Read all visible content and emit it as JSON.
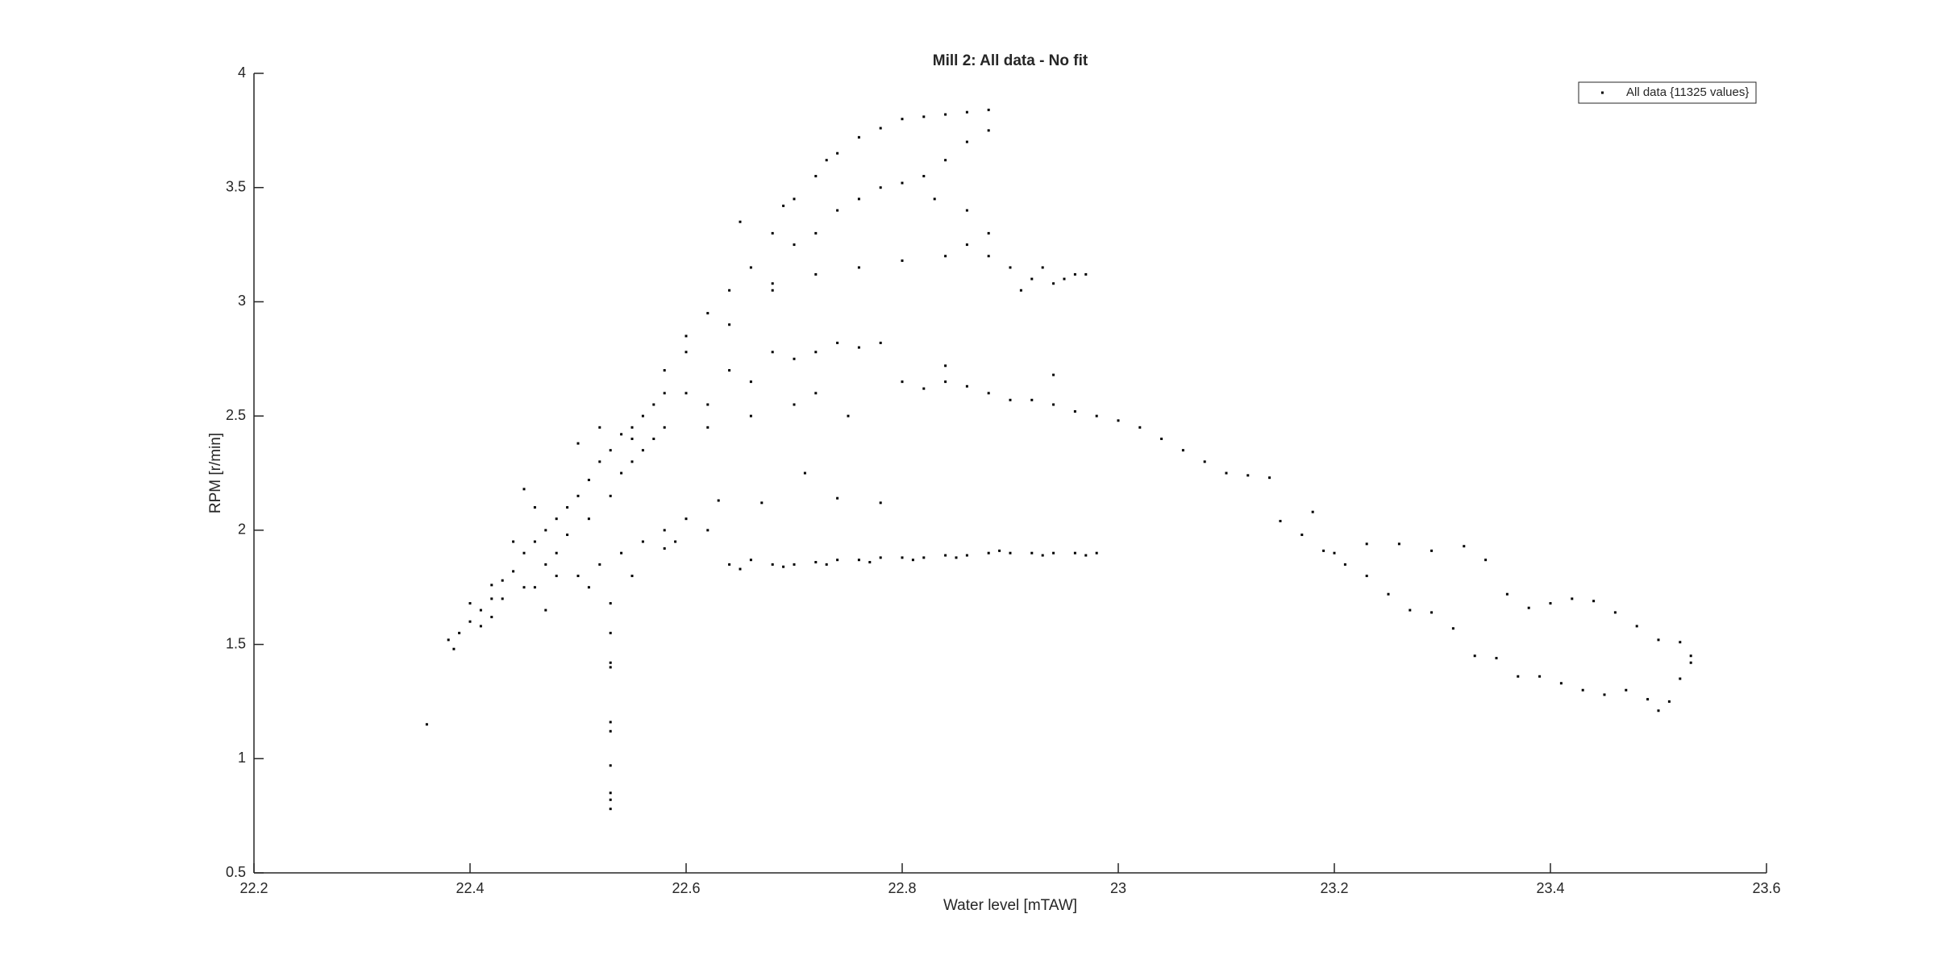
{
  "chart_data": {
    "type": "scatter",
    "title": "Mill 2: All data - No fit",
    "x_label": "Water level [mTAW]",
    "y_label": "RPM [r/min]",
    "xlim": [
      22.2,
      23.6
    ],
    "xticks": [
      22.2,
      22.4,
      22.6,
      22.8,
      23,
      23.2,
      23.4,
      23.6
    ],
    "ylim": [
      0.5,
      4
    ],
    "yticks": [
      0.5,
      1,
      1.5,
      2,
      2.5,
      3,
      3.5,
      4
    ],
    "legend": "top-right",
    "series": [
      {
        "name": "All data {11325 values}",
        "color": "#000000",
        "x": [
          22.38,
          22.385,
          22.39,
          22.4,
          22.41,
          22.42,
          22.43,
          22.44,
          22.45,
          22.46,
          22.47,
          22.48,
          22.49,
          22.5,
          22.51,
          22.52,
          22.53,
          22.54,
          22.55,
          22.56,
          22.57,
          22.58,
          22.4,
          22.42,
          22.44,
          22.45,
          22.45,
          22.46,
          22.47,
          22.48,
          22.49,
          22.5,
          22.51,
          22.52,
          22.53,
          22.54,
          22.55,
          22.56,
          22.57,
          22.42,
          22.43,
          22.41,
          22.46,
          22.48,
          22.5,
          22.52,
          22.54,
          22.56,
          22.58,
          22.6,
          22.47,
          22.51,
          22.55,
          22.59,
          22.62,
          22.64,
          22.65,
          22.68,
          22.7,
          22.72,
          22.74,
          22.76,
          22.78,
          22.8,
          22.82,
          22.84,
          22.86,
          22.88,
          22.9,
          22.92,
          22.94,
          22.96,
          22.98,
          22.66,
          22.69,
          22.73,
          22.77,
          22.81,
          22.85,
          22.89,
          22.93,
          22.97,
          22.63,
          22.67,
          22.71,
          22.74,
          22.78,
          22.58,
          22.53,
          22.53,
          22.53,
          22.53,
          22.53,
          22.53,
          22.53,
          22.53,
          22.53,
          22.53,
          22.36,
          22.58,
          22.6,
          22.62,
          22.64,
          22.66,
          22.68,
          22.7,
          22.72,
          22.74,
          22.76,
          22.78,
          22.8,
          22.82,
          22.84,
          22.86,
          22.88,
          22.65,
          22.69,
          22.73,
          22.6,
          22.64,
          22.68,
          22.7,
          22.72,
          22.74,
          22.76,
          22.78,
          22.8,
          22.82,
          22.84,
          22.86,
          22.88,
          22.83,
          22.86,
          22.88,
          22.88,
          22.86,
          22.84,
          22.8,
          22.76,
          22.72,
          22.68,
          22.9,
          22.92,
          22.94,
          22.96,
          22.97,
          22.91,
          22.93,
          22.95,
          22.55,
          22.58,
          22.62,
          22.66,
          22.7,
          22.72,
          22.74,
          22.76,
          22.78,
          22.6,
          22.64,
          22.68,
          22.72,
          22.75,
          22.7,
          22.66,
          22.62,
          22.8,
          22.82,
          22.84,
          22.86,
          22.88,
          22.9,
          22.92,
          22.94,
          22.96,
          22.98,
          23.0,
          23.02,
          23.04,
          23.06,
          23.08,
          23.1,
          23.12,
          23.14,
          23.15,
          23.17,
          23.19,
          23.21,
          23.23,
          23.25,
          23.27,
          23.29,
          23.31,
          23.33,
          23.35,
          23.37,
          23.39,
          23.41,
          23.43,
          23.45,
          23.47,
          23.49,
          23.5,
          23.51,
          23.52,
          23.53,
          23.53,
          23.52,
          23.5,
          23.48,
          23.46,
          23.44,
          23.42,
          23.4,
          23.38,
          23.36,
          23.34,
          23.32,
          23.29,
          23.26,
          23.23,
          23.2,
          23.18,
          22.94,
          22.84
        ],
        "values": [
          1.52,
          1.48,
          1.55,
          1.6,
          1.65,
          1.7,
          1.78,
          1.82,
          1.9,
          1.95,
          2.0,
          2.05,
          2.1,
          2.15,
          2.22,
          2.3,
          2.35,
          2.42,
          2.45,
          2.5,
          2.55,
          2.6,
          1.68,
          1.62,
          1.95,
          1.75,
          2.18,
          2.1,
          1.85,
          1.9,
          1.98,
          2.38,
          2.05,
          2.45,
          2.15,
          2.25,
          2.3,
          2.35,
          2.4,
          1.76,
          1.7,
          1.58,
          1.75,
          1.8,
          1.8,
          1.85,
          1.9,
          1.95,
          2.0,
          2.05,
          1.65,
          1.75,
          1.8,
          1.95,
          2.0,
          1.85,
          1.83,
          1.85,
          1.85,
          1.86,
          1.87,
          1.87,
          1.88,
          1.88,
          1.88,
          1.89,
          1.89,
          1.9,
          1.9,
          1.9,
          1.9,
          1.9,
          1.9,
          1.87,
          1.84,
          1.85,
          1.86,
          1.87,
          1.88,
          1.91,
          1.89,
          1.89,
          2.13,
          2.12,
          2.25,
          2.14,
          2.12,
          1.92,
          0.78,
          0.82,
          0.85,
          0.97,
          1.12,
          1.16,
          1.4,
          1.42,
          1.55,
          1.68,
          1.15,
          2.7,
          2.85,
          2.95,
          3.05,
          3.15,
          3.3,
          3.45,
          3.55,
          3.65,
          3.72,
          3.76,
          3.8,
          3.81,
          3.82,
          3.83,
          3.84,
          3.35,
          3.42,
          3.62,
          2.78,
          2.9,
          3.05,
          3.25,
          3.3,
          3.4,
          3.45,
          3.5,
          3.52,
          3.55,
          3.62,
          3.7,
          3.75,
          3.45,
          3.4,
          3.3,
          3.2,
          3.25,
          3.2,
          3.18,
          3.15,
          3.12,
          3.08,
          3.15,
          3.1,
          3.08,
          3.12,
          3.12,
          3.05,
          3.15,
          3.1,
          2.4,
          2.45,
          2.55,
          2.65,
          2.75,
          2.78,
          2.82,
          2.8,
          2.82,
          2.6,
          2.7,
          2.78,
          2.6,
          2.5,
          2.55,
          2.5,
          2.45,
          2.65,
          2.62,
          2.65,
          2.63,
          2.6,
          2.57,
          2.57,
          2.55,
          2.52,
          2.5,
          2.48,
          2.45,
          2.4,
          2.35,
          2.3,
          2.25,
          2.24,
          2.23,
          2.04,
          1.98,
          1.91,
          1.85,
          1.8,
          1.72,
          1.65,
          1.64,
          1.57,
          1.45,
          1.44,
          1.36,
          1.36,
          1.33,
          1.3,
          1.28,
          1.3,
          1.26,
          1.21,
          1.25,
          1.35,
          1.42,
          1.45,
          1.51,
          1.52,
          1.58,
          1.64,
          1.69,
          1.7,
          1.68,
          1.66,
          1.72,
          1.87,
          1.93,
          1.91,
          1.94,
          1.94,
          1.9,
          2.08,
          2.68,
          2.72
        ]
      }
    ]
  }
}
